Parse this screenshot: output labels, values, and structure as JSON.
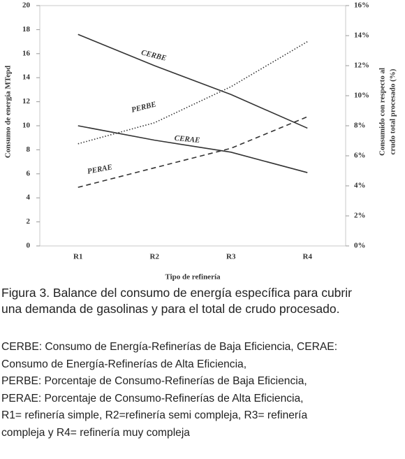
{
  "chart_data": {
    "type": "line",
    "categories": [
      "R1",
      "R2",
      "R3",
      "R4"
    ],
    "xlabel": "Tipo de refinería",
    "ylabel": "Consumo de energía MTepd",
    "y2label": [
      "Consumido con respecto al",
      "crudo total procesado (%)"
    ],
    "ylim": [
      0,
      20
    ],
    "yticks": [
      0,
      2,
      4,
      6,
      8,
      10,
      12,
      14,
      16,
      18,
      20
    ],
    "y2lim": [
      0,
      16
    ],
    "y2ticks": [
      {
        "value": 0,
        "label": "0%"
      },
      {
        "value": 2,
        "label": "2%"
      },
      {
        "value": 4,
        "label": "4%"
      },
      {
        "value": 6,
        "label": "6%"
      },
      {
        "value": 8,
        "label": "8%"
      },
      {
        "value": 10,
        "label": "10%"
      },
      {
        "value": 12,
        "label": "12%"
      },
      {
        "value": 14,
        "label": "14%"
      },
      {
        "value": 16,
        "label": "16%"
      }
    ],
    "series": [
      {
        "name": "CERBE",
        "color": "#333333",
        "line_style": "solid",
        "values": [
          17.6,
          15.0,
          12.6,
          9.8
        ]
      },
      {
        "name": "CERAE",
        "color": "#333333",
        "line_style": "solid",
        "values": [
          10.0,
          8.8,
          7.8,
          6.1
        ]
      },
      {
        "name": "PERBE",
        "color": "#333333",
        "line_style": "dotted",
        "axis": "y2",
        "values": [
          6.8,
          8.2,
          10.6,
          13.6
        ]
      },
      {
        "name": "PERAE",
        "color": "#333333",
        "line_style": "dashed",
        "axis": "y2",
        "values": [
          3.9,
          5.2,
          6.5,
          8.6
        ]
      }
    ]
  },
  "caption": [
    "Figura 3. Balance del consumo de energía específica para cubrir",
    "una demanda de gasolinas y para el total de crudo procesado."
  ],
  "notes": [
    "CERBE: Consumo de Energía-Refinerías de Baja Eficiencia, CERAE:",
    "Consumo de Energía-Refinerías de Alta Eficiencia,",
    "PERBE: Porcentaje de Consumo-Refinerías de Baja Eficiencia,",
    "PERAE: Porcentaje de Consumo-Refinerías de Alta Eficiencia,",
    "R1= refinería simple, R2=refinería semi compleja, R3= refinería",
    "compleja y R4= refinería muy compleja"
  ]
}
